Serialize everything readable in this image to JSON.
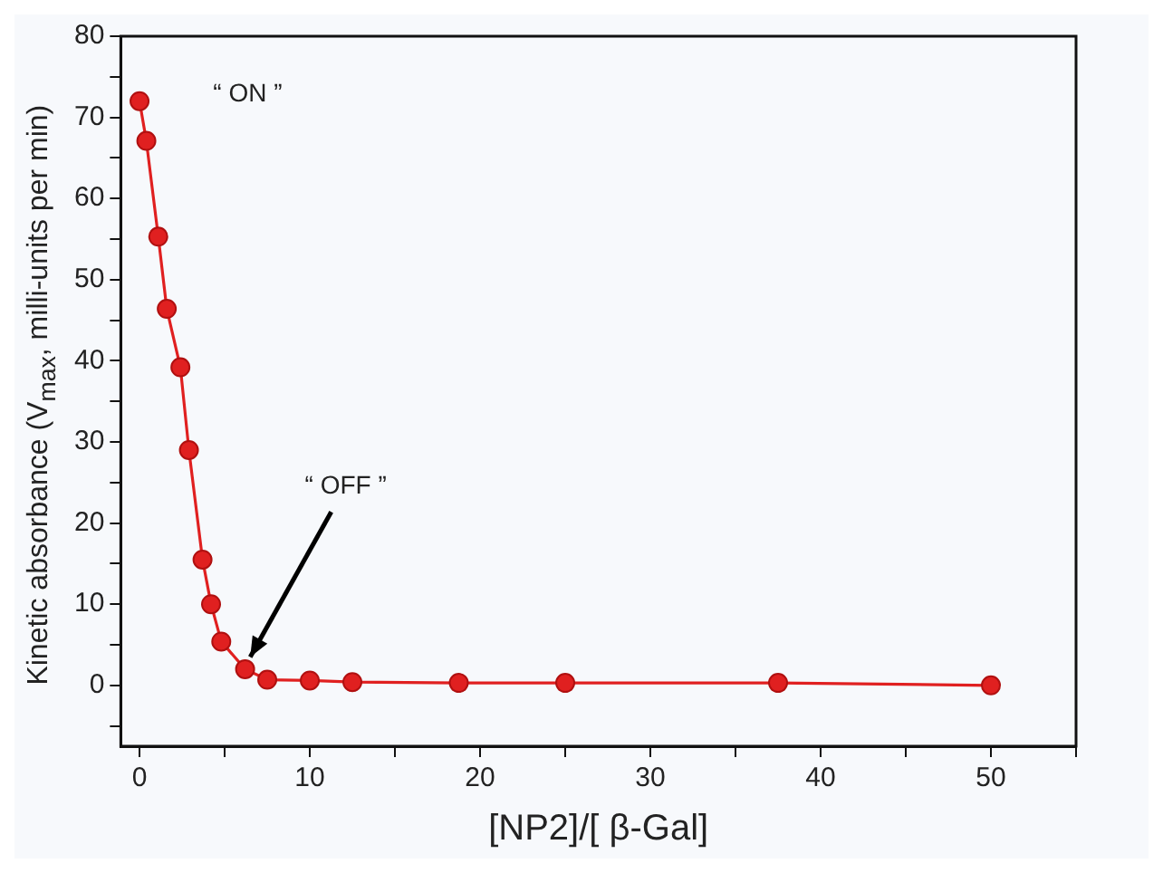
{
  "chart_data": {
    "type": "line",
    "xlabel": "[NP2]/[ β-Gal]",
    "ylabel": "Kinetic absorbance (V$_{max}$, milli-units per min)",
    "x": [
      0,
      0.4,
      1.1,
      1.6,
      2.4,
      2.9,
      3.7,
      4.2,
      4.8,
      6.2,
      7.5,
      10,
      12.5,
      18.75,
      25,
      37.5,
      50
    ],
    "series": [
      {
        "color": "#e02020",
        "values": [
          72,
          67.1,
          55.3,
          46.4,
          39.2,
          29,
          15.5,
          10,
          5.4,
          2,
          0.7,
          0.6,
          0.4,
          0.3,
          0.3,
          0.3,
          0
        ]
      }
    ],
    "xlim": [
      -1.1,
      55
    ],
    "ylim": [
      -7.5,
      80
    ],
    "xticks": [
      0,
      {
        "value": 5,
        "label": null
      },
      10,
      {
        "value": 15,
        "label": null
      },
      20,
      {
        "value": 25,
        "label": null
      },
      30,
      {
        "value": 35,
        "label": null
      },
      40,
      {
        "value": 45,
        "label": null
      },
      50,
      {
        "value": 55,
        "label": null
      }
    ],
    "yticks": [
      {
        "value": -5,
        "label": null
      },
      0,
      {
        "value": 5,
        "label": null
      },
      10,
      {
        "value": 15,
        "label": null
      },
      20,
      {
        "value": 25,
        "label": null
      },
      30,
      {
        "value": 35,
        "label": null
      },
      40,
      {
        "value": 45,
        "label": null
      },
      50,
      {
        "value": 55,
        "label": null
      },
      60,
      {
        "value": 65,
        "label": null
      },
      70,
      {
        "value": 75,
        "label": null
      },
      80
    ],
    "annotations": [
      "“ ON ”",
      {
        "text": "“ OFF ”",
        "x": 6.5,
        "y": 3.5
      }
    ],
    "grid": false,
    "legend": false,
    "marker": "circle",
    "line_style": "solid"
  }
}
